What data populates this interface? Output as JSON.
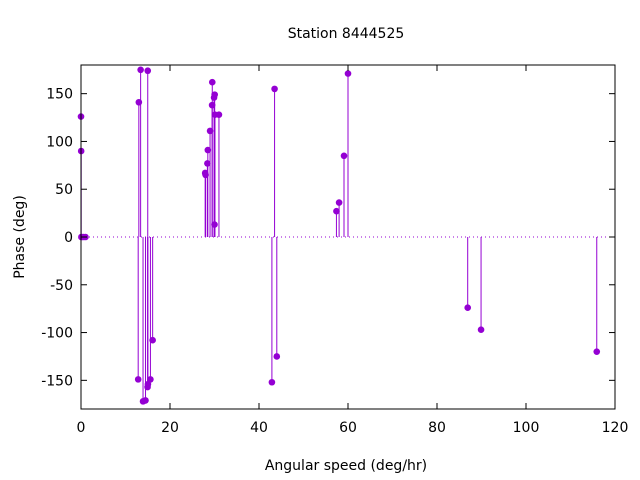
{
  "chart_data": {
    "type": "scatter",
    "title": "Station 8444525",
    "xlabel": "Angular speed (deg/hr)",
    "ylabel": "Phase (deg)",
    "xlim": [
      0,
      120
    ],
    "ylim": [
      -180,
      180
    ],
    "xticks": [
      0,
      20,
      40,
      60,
      80,
      100,
      120
    ],
    "yticks": [
      -150,
      -100,
      -50,
      0,
      50,
      100,
      150
    ],
    "grid": false,
    "legend": "none",
    "style": "impulses-with-points",
    "color": "#9400d3",
    "series": [
      {
        "points": [
          [
            0.0,
            126
          ],
          [
            0.04,
            90
          ],
          [
            0.08,
            0
          ],
          [
            0.5,
            0
          ],
          [
            1.0,
            0
          ],
          [
            12.85,
            -149
          ],
          [
            13.0,
            141
          ],
          [
            13.4,
            175
          ],
          [
            13.94,
            -172
          ],
          [
            14.5,
            -171
          ],
          [
            14.96,
            -157
          ],
          [
            15.0,
            174
          ],
          [
            15.04,
            -154
          ],
          [
            15.6,
            -149
          ],
          [
            16.1,
            -108
          ],
          [
            27.9,
            67
          ],
          [
            28.0,
            65
          ],
          [
            28.4,
            77
          ],
          [
            28.5,
            91
          ],
          [
            29.0,
            111
          ],
          [
            29.5,
            162
          ],
          [
            29.46,
            138
          ],
          [
            29.9,
            146
          ],
          [
            30.0,
            13
          ],
          [
            30.04,
            149
          ],
          [
            30.1,
            128
          ],
          [
            31.0,
            128
          ],
          [
            42.9,
            -152
          ],
          [
            43.5,
            155
          ],
          [
            44.0,
            -125
          ],
          [
            57.4,
            27
          ],
          [
            58.0,
            36
          ],
          [
            59.1,
            85
          ],
          [
            60.0,
            171
          ],
          [
            86.9,
            -74
          ],
          [
            89.9,
            -97
          ],
          [
            115.9,
            -120
          ]
        ]
      }
    ]
  }
}
